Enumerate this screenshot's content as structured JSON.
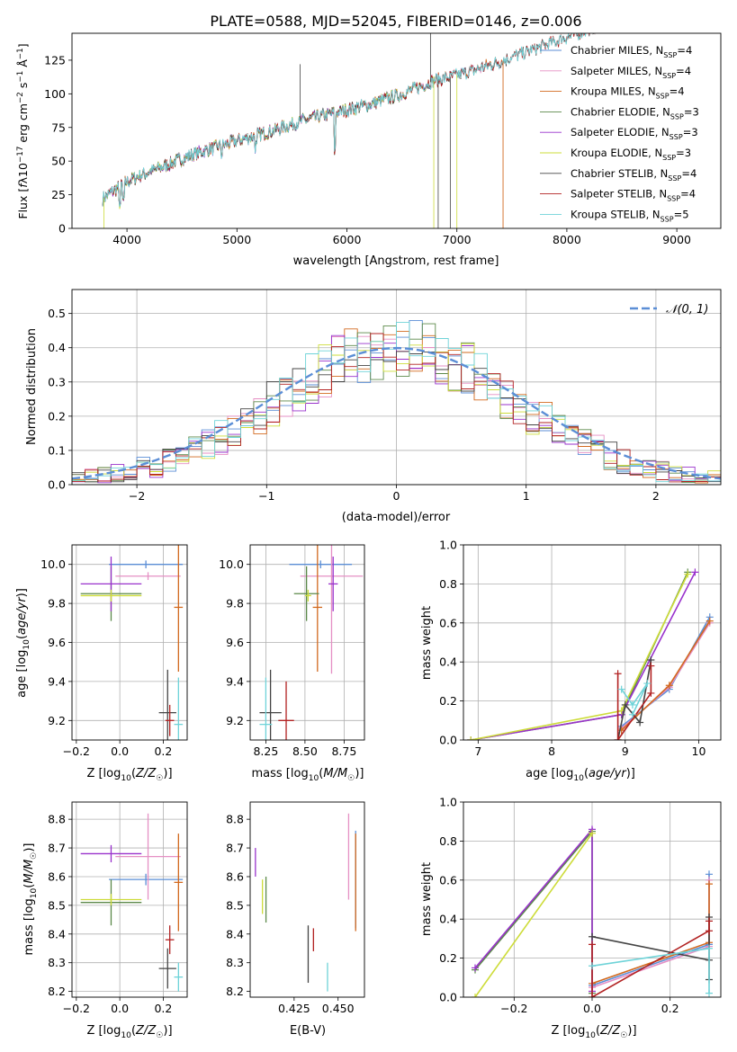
{
  "figure_title": "PLATE=0588, MJD=52045, FIBERID=0146, z=0.006",
  "colors": {
    "Chabrier MILES": "#5b8ed6",
    "Salpeter MILES": "#e58fc4",
    "Kroupa MILES": "#d2691e",
    "Chabrier ELODIE": "#5c8a4a",
    "Salpeter ELODIE": "#9932cc",
    "Kroupa ELODIE": "#cddc39",
    "Chabrier STELIB": "#444444",
    "Salpeter STELIB": "#b22222",
    "Kroupa STELIB": "#6fd3d8",
    "normal_curve": "#5b8ed6",
    "grid": "#b0b0b0"
  },
  "chart_data": [
    {
      "id": "spectrum",
      "type": "line",
      "xlabel": "wavelength [Angstrom, rest frame]",
      "ylabel": "Flux [f_λ 10⁻¹⁷ erg cm⁻² s⁻¹ Å⁻¹]",
      "xlim": [
        3500,
        9400
      ],
      "ylim": [
        0,
        145
      ],
      "xticks": [
        4000,
        5000,
        6000,
        7000,
        8000,
        9000
      ],
      "yticks": [
        0,
        25,
        50,
        75,
        100,
        125
      ],
      "grid": false,
      "legend_position": "right",
      "series": [
        {
          "name": "Chabrier MILES, N_SSP=4",
          "end": 7420
        },
        {
          "name": "Salpeter MILES, N_SSP=4",
          "end": 7420
        },
        {
          "name": "Kroupa MILES, N_SSP=4",
          "end": 7420
        },
        {
          "name": "Chabrier ELODIE, N_SSP=3",
          "end": 6800
        },
        {
          "name": "Salpeter ELODIE, N_SSP=3",
          "end": 6800
        },
        {
          "name": "Kroupa ELODIE, N_SSP=3",
          "end": 6800
        },
        {
          "name": "Chabrier STELIB, N_SSP=4",
          "end": 9200
        },
        {
          "name": "Salpeter STELIB, N_SSP=4",
          "end": 9200
        },
        {
          "name": "Kroupa STELIB, N_SSP=5",
          "end": 9200
        }
      ],
      "continuum": {
        "x": [
          3780,
          4000,
          4300,
          4600,
          5000,
          5300,
          5600,
          5900,
          6200,
          6500,
          6800,
          7100,
          7400,
          7700,
          8000
        ],
        "y": [
          22,
          35,
          45,
          55,
          65,
          72,
          80,
          86,
          92,
          100,
          110,
          116,
          124,
          133,
          142
        ]
      }
    },
    {
      "id": "residuals",
      "type": "line",
      "xlabel": "(data-model)/error",
      "ylabel": "Normed distribution",
      "xlim": [
        -2.5,
        2.5
      ],
      "ylim": [
        0,
        0.57
      ],
      "xticks": [
        -2,
        -1,
        0,
        1,
        2
      ],
      "yticks": [
        0.0,
        0.1,
        0.2,
        0.3,
        0.4,
        0.5
      ],
      "grid": true,
      "legend": "𝒩(0, 1)",
      "legend_position": "top-right"
    },
    {
      "id": "age_vs_Z",
      "type": "scatter",
      "xlabel": "Z [log₁₀(Z/Z☉)]",
      "ylabel": "age  [log₁₀(age/yr)]",
      "xlim": [
        -0.22,
        0.31
      ],
      "ylim": [
        9.1,
        10.1
      ],
      "xticks": [
        -0.2,
        0.0,
        0.2
      ],
      "yticks": [
        9.2,
        9.4,
        9.6,
        9.8,
        10.0
      ],
      "grid": true,
      "points": [
        {
          "series": "Chabrier MILES",
          "x": 0.12,
          "xerr": 0.17,
          "y": 10.0,
          "yerr": 0.02
        },
        {
          "series": "Salpeter MILES",
          "x": 0.13,
          "xerr": 0.15,
          "y": 9.94,
          "yerr": 0.02
        },
        {
          "series": "Kroupa MILES",
          "x": 0.27,
          "xerr": 0.02,
          "y": 9.78,
          "yerr": 0.33
        },
        {
          "series": "Chabrier ELODIE",
          "x": -0.04,
          "xerr": 0.14,
          "y": 9.85,
          "yerr": 0.14
        },
        {
          "series": "Salpeter ELODIE",
          "x": -0.04,
          "xerr": 0.14,
          "y": 9.9,
          "yerr": 0.14
        },
        {
          "series": "Kroupa ELODIE",
          "x": -0.04,
          "xerr": 0.14,
          "y": 9.84,
          "yerr": 0.03
        },
        {
          "series": "Chabrier STELIB",
          "x": 0.22,
          "xerr": 0.04,
          "y": 9.24,
          "yerr": 0.22
        },
        {
          "series": "Salpeter STELIB",
          "x": 0.23,
          "xerr": 0.02,
          "y": 9.2,
          "yerr": 0.08
        },
        {
          "series": "Kroupa STELIB",
          "x": 0.27,
          "xerr": 0.02,
          "y": 9.18,
          "yerr": 0.24
        }
      ]
    },
    {
      "id": "age_vs_mass",
      "type": "scatter",
      "xlabel": "mass [log₁₀(M/M☉)]",
      "ylabel": "",
      "xlim": [
        8.15,
        8.88
      ],
      "ylim": [
        9.1,
        10.1
      ],
      "xticks": [
        8.25,
        8.5,
        8.75
      ],
      "yticks": [
        9.2,
        9.4,
        9.6,
        9.8,
        10.0
      ],
      "grid": true,
      "points": [
        {
          "series": "Chabrier MILES",
          "x": 8.6,
          "xerr": 0.2,
          "y": 10.0,
          "yerr": 0.02
        },
        {
          "series": "Salpeter MILES",
          "x": 8.67,
          "xerr": 0.2,
          "y": 9.94,
          "yerr": 0.5
        },
        {
          "series": "Kroupa MILES",
          "x": 8.58,
          "xerr": 0.03,
          "y": 9.78,
          "yerr": 0.33
        },
        {
          "series": "Chabrier ELODIE",
          "x": 8.51,
          "xerr": 0.08,
          "y": 9.85,
          "yerr": 0.14
        },
        {
          "series": "Salpeter ELODIE",
          "x": 8.68,
          "xerr": 0.03,
          "y": 9.9,
          "yerr": 0.14
        },
        {
          "series": "Kroupa ELODIE",
          "x": 8.52,
          "xerr": 0.02,
          "y": 9.84,
          "yerr": 0.03
        },
        {
          "series": "Chabrier STELIB",
          "x": 8.28,
          "xerr": 0.07,
          "y": 9.24,
          "yerr": 0.22
        },
        {
          "series": "Salpeter STELIB",
          "x": 8.38,
          "xerr": 0.05,
          "y": 9.2,
          "yerr": 0.2
        },
        {
          "series": "Kroupa STELIB",
          "x": 8.25,
          "xerr": 0.04,
          "y": 9.18,
          "yerr": 0.24
        }
      ]
    },
    {
      "id": "weight_vs_age",
      "type": "line",
      "xlabel": "age  [log₁₀(age/yr)]",
      "ylabel": "mass weight",
      "xlim": [
        6.8,
        10.3
      ],
      "ylim": [
        0,
        1.0
      ],
      "xticks": [
        7,
        8,
        9,
        10
      ],
      "yticks": [
        0.0,
        0.2,
        0.4,
        0.6,
        0.8,
        1.0
      ],
      "grid": true
    },
    {
      "id": "mass_vs_Z",
      "type": "scatter",
      "xlabel": "Z [log₁₀(Z/Z☉)]",
      "ylabel": "mass [log₁₀(M/M☉)]",
      "xlim": [
        -0.22,
        0.31
      ],
      "ylim": [
        8.18,
        8.86
      ],
      "xticks": [
        -0.2,
        0.0,
        0.2
      ],
      "yticks": [
        8.2,
        8.3,
        8.4,
        8.5,
        8.6,
        8.7,
        8.8
      ],
      "grid": true,
      "points": [
        {
          "series": "Chabrier MILES",
          "x": 0.12,
          "xerr": 0.17,
          "y": 8.59,
          "yerr": 0.02
        },
        {
          "series": "Salpeter MILES",
          "x": 0.13,
          "xerr": 0.15,
          "y": 8.67,
          "yerr": 0.15
        },
        {
          "series": "Kroupa MILES",
          "x": 0.27,
          "xerr": 0.02,
          "y": 8.58,
          "yerr": 0.17
        },
        {
          "series": "Chabrier ELODIE",
          "x": -0.04,
          "xerr": 0.14,
          "y": 8.51,
          "yerr": 0.08
        },
        {
          "series": "Salpeter ELODIE",
          "x": -0.04,
          "xerr": 0.14,
          "y": 8.68,
          "yerr": 0.03
        },
        {
          "series": "Kroupa ELODIE",
          "x": -0.04,
          "xerr": 0.14,
          "y": 8.52,
          "yerr": 0.02
        },
        {
          "series": "Chabrier STELIB",
          "x": 0.22,
          "xerr": 0.04,
          "y": 8.28,
          "yerr": 0.07
        },
        {
          "series": "Salpeter STELIB",
          "x": 0.23,
          "xerr": 0.02,
          "y": 8.38,
          "yerr": 0.05
        },
        {
          "series": "Kroupa STELIB",
          "x": 0.27,
          "xerr": 0.02,
          "y": 8.25,
          "yerr": 0.05
        }
      ]
    },
    {
      "id": "mass_vs_EBV",
      "type": "scatter",
      "xlabel": "E(B-V)",
      "ylabel": "",
      "xlim": [
        0.4,
        0.465
      ],
      "ylim": [
        8.18,
        8.86
      ],
      "xticks": [
        0.425,
        0.45
      ],
      "yticks": [
        8.2,
        8.3,
        8.4,
        8.5,
        8.6,
        8.7,
        8.8
      ],
      "grid": false,
      "points": [
        {
          "series": "Chabrier MILES",
          "x": 0.46,
          "y": 8.59,
          "yerr": 0.17
        },
        {
          "series": "Salpeter MILES",
          "x": 0.456,
          "y": 8.67,
          "yerr": 0.15
        },
        {
          "series": "Kroupa MILES",
          "x": 0.46,
          "y": 8.58,
          "yerr": 0.17
        },
        {
          "series": "Chabrier ELODIE",
          "x": 0.409,
          "y": 8.52,
          "yerr": 0.08
        },
        {
          "series": "Salpeter ELODIE",
          "x": 0.403,
          "y": 8.65,
          "yerr": 0.05
        },
        {
          "series": "Kroupa ELODIE",
          "x": 0.407,
          "y": 8.53,
          "yerr": 0.06
        },
        {
          "series": "Chabrier STELIB",
          "x": 0.433,
          "y": 8.33,
          "yerr": 0.1
        },
        {
          "series": "Salpeter STELIB",
          "x": 0.436,
          "y": 8.38,
          "yerr": 0.04
        },
        {
          "series": "Kroupa STELIB",
          "x": 0.444,
          "y": 8.25,
          "yerr": 0.05
        }
      ]
    },
    {
      "id": "weight_vs_Z",
      "type": "line",
      "xlabel": "Z [log₁₀(Z/Z☉)]",
      "ylabel": "mass weight",
      "xlim": [
        -0.33,
        0.33
      ],
      "ylim": [
        0,
        1.0
      ],
      "xticks": [
        -0.2,
        0.0,
        0.2
      ],
      "yticks": [
        0.0,
        0.2,
        0.4,
        0.6,
        0.8,
        1.0
      ],
      "grid": true
    }
  ]
}
